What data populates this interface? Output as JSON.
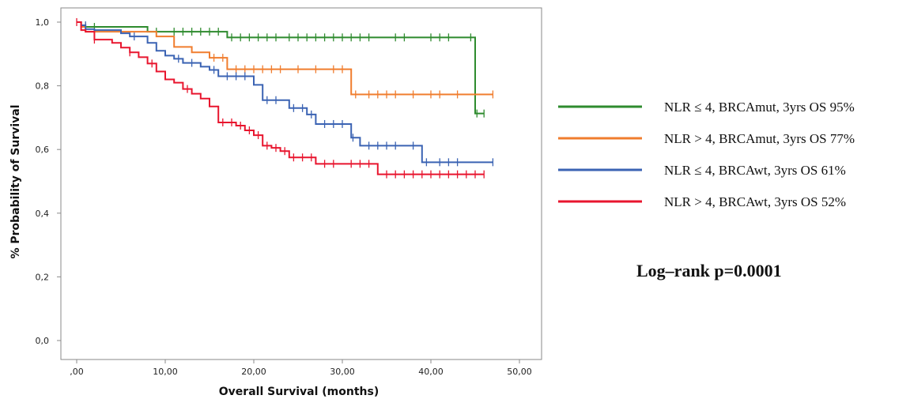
{
  "chart_data": {
    "type": "line",
    "subtype": "kaplan-meier-step",
    "xlabel": "Overall Survival (months)",
    "ylabel": "% Probability of Survival",
    "xlim": [
      0,
      50
    ],
    "ylim": [
      0,
      1
    ],
    "x_ticks": [
      ",00",
      "10,00",
      "20,00",
      "30,00",
      "40,00",
      "50,00"
    ],
    "y_ticks": [
      "0,0",
      "0,2",
      "0,4",
      "0,6",
      "0,8",
      "1,0"
    ],
    "grid": false,
    "legend_position": "right",
    "annotation": "Log–rank p=0.0001",
    "series": [
      {
        "name": "NLR ≤ 4, BRCAmut, 3yrs OS  95%",
        "color": "#2e8b2e",
        "steps": [
          [
            0,
            1.0
          ],
          [
            0.5,
            0.985
          ],
          [
            8,
            0.97
          ],
          [
            17,
            0.952
          ],
          [
            45,
            0.713
          ],
          [
            46,
            0.713
          ]
        ],
        "censored": [
          [
            1,
            0.985
          ],
          [
            2,
            0.985
          ],
          [
            9,
            0.97
          ],
          [
            11,
            0.97
          ],
          [
            12,
            0.97
          ],
          [
            13,
            0.97
          ],
          [
            14,
            0.97
          ],
          [
            15,
            0.97
          ],
          [
            16,
            0.97
          ],
          [
            17.5,
            0.952
          ],
          [
            18.5,
            0.952
          ],
          [
            19.5,
            0.952
          ],
          [
            20.5,
            0.952
          ],
          [
            21.5,
            0.952
          ],
          [
            22.5,
            0.952
          ],
          [
            24,
            0.952
          ],
          [
            25,
            0.952
          ],
          [
            26,
            0.952
          ],
          [
            27,
            0.952
          ],
          [
            28,
            0.952
          ],
          [
            29,
            0.952
          ],
          [
            30,
            0.952
          ],
          [
            31,
            0.952
          ],
          [
            32,
            0.952
          ],
          [
            33,
            0.952
          ],
          [
            36,
            0.952
          ],
          [
            37,
            0.952
          ],
          [
            40,
            0.952
          ],
          [
            41,
            0.952
          ],
          [
            42,
            0.952
          ],
          [
            44.5,
            0.952
          ],
          [
            45.2,
            0.713
          ],
          [
            46,
            0.713
          ]
        ]
      },
      {
        "name": "NLR > 4, BRCAmut, 3yrs OS  77%",
        "color": "#f07d2e",
        "steps": [
          [
            0,
            1.0
          ],
          [
            0.5,
            0.985
          ],
          [
            1,
            0.97
          ],
          [
            9,
            0.955
          ],
          [
            11,
            0.922
          ],
          [
            13,
            0.905
          ],
          [
            15,
            0.888
          ],
          [
            17,
            0.852
          ],
          [
            31,
            0.773
          ],
          [
            47,
            0.773
          ]
        ],
        "censored": [
          [
            1,
            0.985
          ],
          [
            15.5,
            0.888
          ],
          [
            16.5,
            0.888
          ],
          [
            18,
            0.852
          ],
          [
            19,
            0.852
          ],
          [
            20,
            0.852
          ],
          [
            21,
            0.852
          ],
          [
            22,
            0.852
          ],
          [
            23,
            0.852
          ],
          [
            25,
            0.852
          ],
          [
            27,
            0.852
          ],
          [
            29,
            0.852
          ],
          [
            30,
            0.852
          ],
          [
            31.5,
            0.773
          ],
          [
            33,
            0.773
          ],
          [
            34,
            0.773
          ],
          [
            35,
            0.773
          ],
          [
            36,
            0.773
          ],
          [
            38,
            0.773
          ],
          [
            40,
            0.773
          ],
          [
            41,
            0.773
          ],
          [
            43,
            0.773
          ],
          [
            47,
            0.773
          ]
        ]
      },
      {
        "name": "NLR ≤ 4, BRCAwt, 3yrs OS 61%",
        "color": "#3b63b3",
        "steps": [
          [
            0,
            1.0
          ],
          [
            0.5,
            0.99
          ],
          [
            1,
            0.978
          ],
          [
            2,
            0.975
          ],
          [
            5,
            0.965
          ],
          [
            6,
            0.955
          ],
          [
            8,
            0.935
          ],
          [
            9,
            0.91
          ],
          [
            10,
            0.895
          ],
          [
            11,
            0.885
          ],
          [
            12,
            0.872
          ],
          [
            14,
            0.86
          ],
          [
            15,
            0.85
          ],
          [
            16,
            0.83
          ],
          [
            20,
            0.803
          ],
          [
            21,
            0.755
          ],
          [
            24,
            0.73
          ],
          [
            26,
            0.71
          ],
          [
            27,
            0.68
          ],
          [
            31,
            0.637
          ],
          [
            32,
            0.612
          ],
          [
            39,
            0.56
          ],
          [
            47,
            0.56
          ]
        ],
        "censored": [
          [
            1,
            0.99
          ],
          [
            6.5,
            0.955
          ],
          [
            11.5,
            0.885
          ],
          [
            13,
            0.872
          ],
          [
            15.5,
            0.85
          ],
          [
            17,
            0.83
          ],
          [
            18,
            0.83
          ],
          [
            19,
            0.83
          ],
          [
            21.5,
            0.755
          ],
          [
            22.5,
            0.755
          ],
          [
            24.5,
            0.73
          ],
          [
            25.5,
            0.73
          ],
          [
            26.5,
            0.71
          ],
          [
            28,
            0.68
          ],
          [
            29,
            0.68
          ],
          [
            30,
            0.68
          ],
          [
            31.2,
            0.637
          ],
          [
            33,
            0.612
          ],
          [
            34,
            0.612
          ],
          [
            35,
            0.612
          ],
          [
            36,
            0.612
          ],
          [
            38,
            0.612
          ],
          [
            39.5,
            0.56
          ],
          [
            41,
            0.56
          ],
          [
            42,
            0.56
          ],
          [
            43,
            0.56
          ],
          [
            47,
            0.56
          ]
        ]
      },
      {
        "name": "NLR > 4, BRCAwt, 3yrs OS 52%",
        "color": "#e8152e",
        "steps": [
          [
            0,
            1.0
          ],
          [
            0.5,
            0.975
          ],
          [
            1,
            0.97
          ],
          [
            2,
            0.945
          ],
          [
            4,
            0.935
          ],
          [
            5,
            0.92
          ],
          [
            6,
            0.905
          ],
          [
            7,
            0.89
          ],
          [
            8,
            0.87
          ],
          [
            9,
            0.845
          ],
          [
            10,
            0.82
          ],
          [
            11,
            0.81
          ],
          [
            12,
            0.79
          ],
          [
            13,
            0.775
          ],
          [
            14,
            0.76
          ],
          [
            15,
            0.735
          ],
          [
            16,
            0.685
          ],
          [
            18,
            0.675
          ],
          [
            19,
            0.66
          ],
          [
            20,
            0.645
          ],
          [
            21,
            0.612
          ],
          [
            22,
            0.605
          ],
          [
            23,
            0.595
          ],
          [
            24,
            0.575
          ],
          [
            27,
            0.555
          ],
          [
            34,
            0.522
          ],
          [
            46,
            0.522
          ]
        ],
        "censored": [
          [
            0,
            1.0
          ],
          [
            2,
            0.945
          ],
          [
            6,
            0.905
          ],
          [
            8.5,
            0.87
          ],
          [
            12.5,
            0.79
          ],
          [
            16.5,
            0.685
          ],
          [
            17.5,
            0.685
          ],
          [
            18.5,
            0.675
          ],
          [
            19.5,
            0.66
          ],
          [
            20.5,
            0.645
          ],
          [
            21.5,
            0.612
          ],
          [
            22.5,
            0.605
          ],
          [
            23.5,
            0.595
          ],
          [
            24.5,
            0.575
          ],
          [
            25.5,
            0.575
          ],
          [
            26.5,
            0.575
          ],
          [
            28,
            0.555
          ],
          [
            29,
            0.555
          ],
          [
            31,
            0.555
          ],
          [
            32,
            0.555
          ],
          [
            33,
            0.555
          ],
          [
            35,
            0.522
          ],
          [
            36,
            0.522
          ],
          [
            37,
            0.522
          ],
          [
            38,
            0.522
          ],
          [
            39,
            0.522
          ],
          [
            40,
            0.522
          ],
          [
            41,
            0.522
          ],
          [
            42,
            0.522
          ],
          [
            43,
            0.522
          ],
          [
            44,
            0.522
          ],
          [
            45,
            0.522
          ],
          [
            46,
            0.522
          ]
        ]
      }
    ]
  }
}
